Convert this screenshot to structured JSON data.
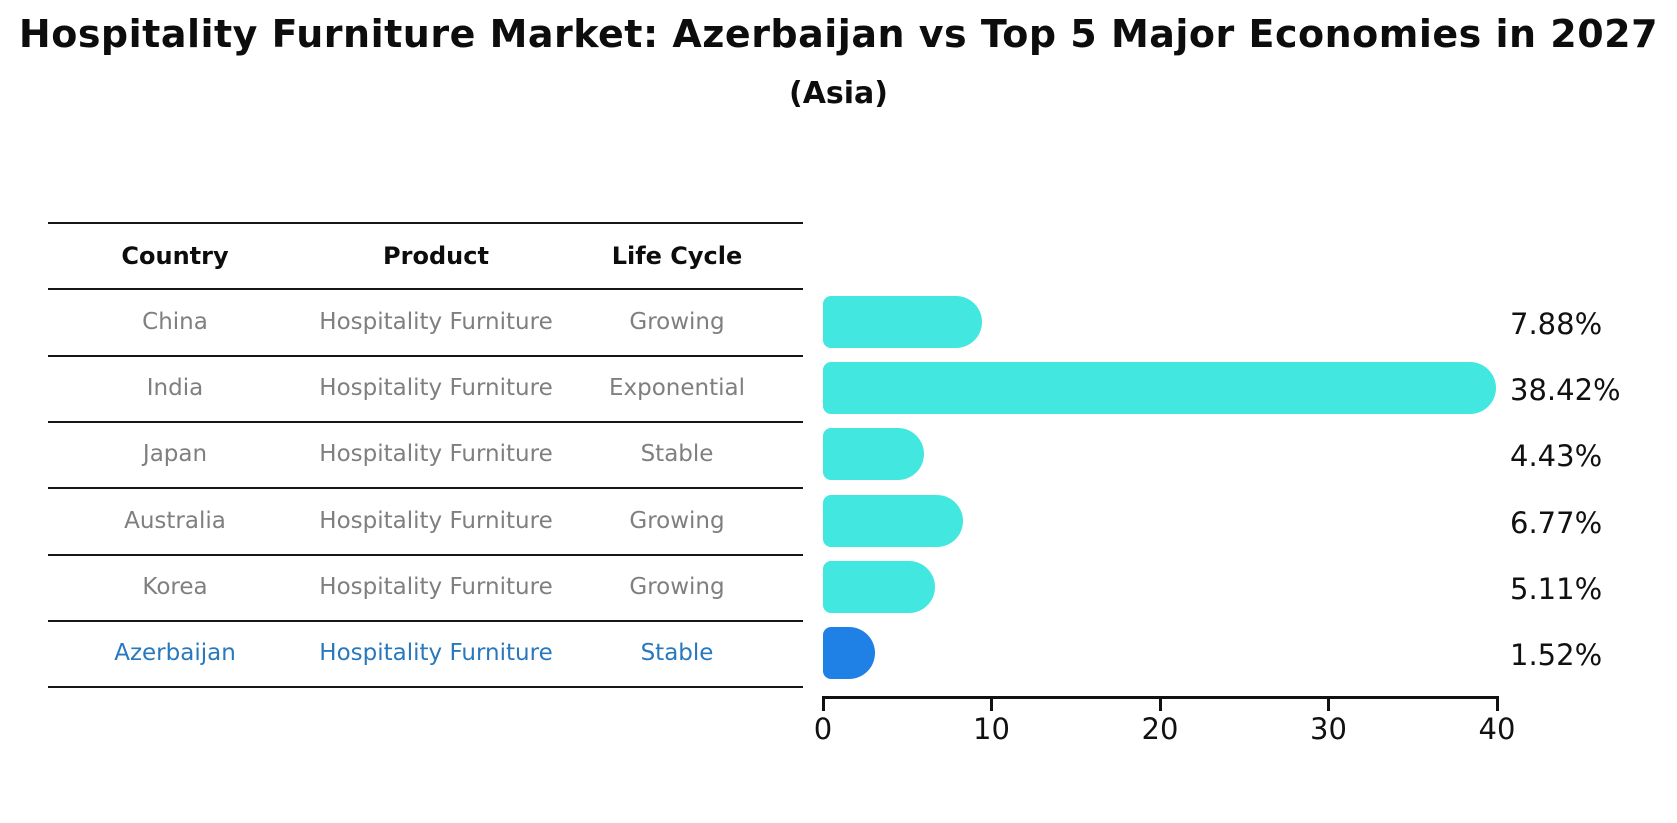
{
  "title": "Hospitality Furniture Market: Azerbaijan vs Top 5 Major Economies in 2027",
  "subtitle": "(Asia)",
  "table": {
    "headers": [
      "Country",
      "Product",
      "Life Cycle"
    ],
    "rows": [
      {
        "country": "China",
        "product": "Hospitality Furniture",
        "life_cycle": "Growing",
        "highlight": false
      },
      {
        "country": "India",
        "product": "Hospitality Furniture",
        "life_cycle": "Exponential",
        "highlight": false
      },
      {
        "country": "Japan",
        "product": "Hospitality Furniture",
        "life_cycle": "Stable",
        "highlight": false
      },
      {
        "country": "Australia",
        "product": "Hospitality Furniture",
        "life_cycle": "Growing",
        "highlight": false
      },
      {
        "country": "Korea",
        "product": "Hospitality Furniture",
        "life_cycle": "Growing",
        "highlight": false
      },
      {
        "country": "Azerbaijan",
        "product": "Hospitality Furniture",
        "life_cycle": "Stable",
        "highlight": true
      }
    ]
  },
  "chart_data": {
    "type": "bar",
    "orientation": "horizontal",
    "categories": [
      "China",
      "India",
      "Japan",
      "Australia",
      "Korea",
      "Azerbaijan"
    ],
    "values": [
      7.88,
      38.42,
      4.43,
      6.77,
      5.11,
      1.52
    ],
    "value_labels": [
      "7.88%",
      "38.42%",
      "4.43%",
      "6.77%",
      "5.11%",
      "1.52%"
    ],
    "x_ticks": [
      "0",
      "10",
      "20",
      "30",
      "40"
    ],
    "x_tick_values": [
      0,
      10,
      20,
      30,
      40
    ],
    "xlim": [
      0,
      40
    ],
    "grid": false,
    "legend": false,
    "bar_color": "#42E8E0",
    "highlight_color": "#1F80E6",
    "highlight_border_color": "#1F80E6",
    "highlight_index": 5
  },
  "colors": {
    "highlight_text": "#2878BE",
    "cell_text": "#7F7F7F",
    "header_text": "#0D0D0D",
    "axis": "#111111"
  }
}
